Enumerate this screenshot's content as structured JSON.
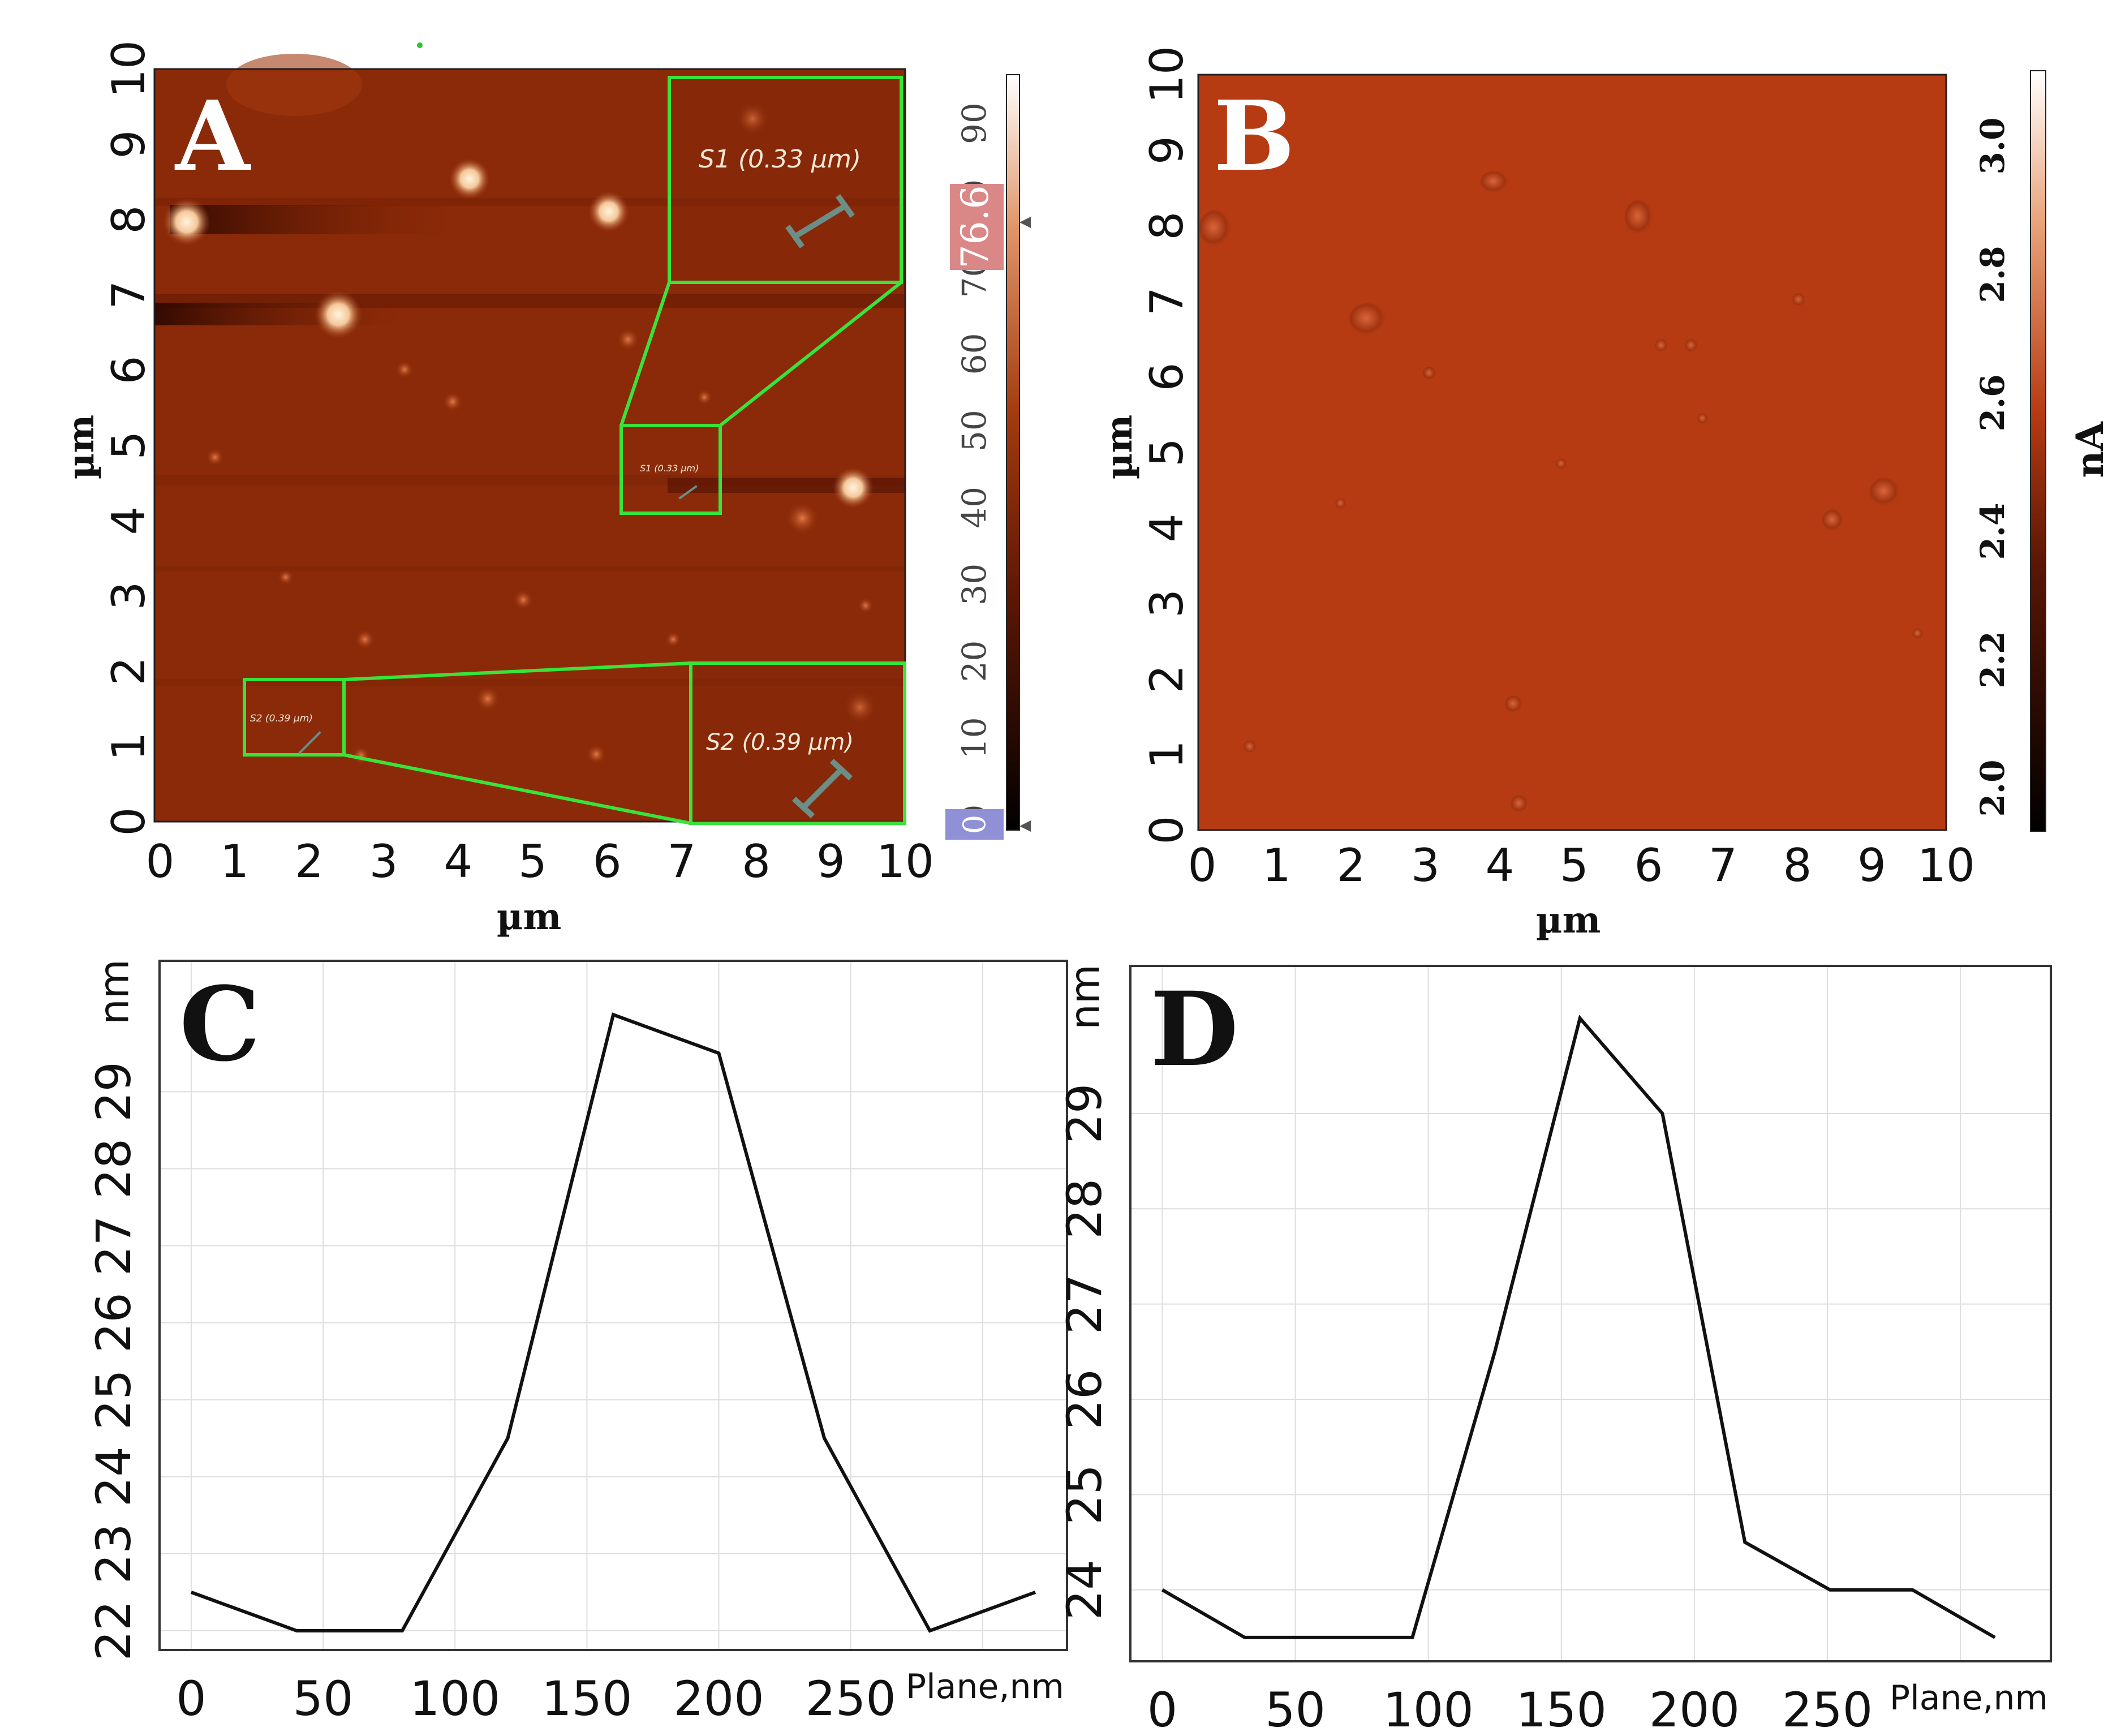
{
  "panels": {
    "A": {
      "letter": "A",
      "xlabel": "µm",
      "ylabel": "µm",
      "x_ticks": [
        "0",
        "1",
        "2",
        "3",
        "4",
        "5",
        "6",
        "7",
        "8",
        "9",
        "10"
      ],
      "y_ticks": [
        "0",
        "1",
        "2",
        "3",
        "4",
        "5",
        "6",
        "7",
        "8",
        "9",
        "10"
      ],
      "colorbar": {
        "ticks": [
          "0",
          "10",
          "20",
          "30",
          "40",
          "50",
          "60",
          "70",
          "80",
          "90"
        ],
        "marker_value": "76.6",
        "min_marker": "0"
      },
      "insets": {
        "s1_small": "S1 (0.33 µm)",
        "s1_large": "S1 (0.33 µm)",
        "s2_small": "S2 (0.39 µm)",
        "s2_large": "S2 (0.39 µm)"
      },
      "colors": {
        "map": "#8b2a08",
        "inset": "#39e339",
        "bright": "#fff1d6"
      }
    },
    "B": {
      "letter": "B",
      "xlabel": "µm",
      "ylabel": "µm",
      "x_ticks": [
        "0",
        "1",
        "2",
        "3",
        "4",
        "5",
        "6",
        "7",
        "8",
        "9",
        "10"
      ],
      "y_ticks": [
        "0",
        "1",
        "2",
        "3",
        "4",
        "5",
        "6",
        "7",
        "8",
        "9",
        "10"
      ],
      "colorbar": {
        "ticks": [
          "2.0",
          "2.2",
          "2.4",
          "2.6",
          "2.8",
          "3.0"
        ],
        "unit": "nA"
      },
      "colors": {
        "map": "#b63b13"
      }
    }
  },
  "chart_data": [
    {
      "panel": "C",
      "type": "line",
      "title": "",
      "letter": "C",
      "xlabel": "Plane,nm",
      "ylabel": "nm",
      "x_ticks": [
        0,
        50,
        100,
        150,
        200,
        250
      ],
      "y_ticks": [
        22,
        23,
        24,
        25,
        26,
        27,
        28,
        29
      ],
      "xlim": [
        -12,
        332
      ],
      "ylim": [
        21.75,
        30.7
      ],
      "x": [
        0,
        40,
        80,
        120,
        160,
        200,
        240,
        280,
        320
      ],
      "y": [
        22.5,
        22.0,
        22.0,
        24.5,
        30.0,
        29.5,
        24.5,
        22.0,
        22.5
      ]
    },
    {
      "panel": "D",
      "type": "line",
      "title": "",
      "letter": "D",
      "xlabel": "Plane,nm",
      "ylabel": "nm",
      "x_ticks": [
        0,
        50,
        100,
        150,
        200,
        250
      ],
      "y_ticks": [
        24,
        25,
        26,
        27,
        28,
        29
      ],
      "xlim": [
        -12,
        334
      ],
      "ylim": [
        23.25,
        30.55
      ],
      "x": [
        0,
        31,
        62,
        94,
        125,
        157,
        188,
        219,
        251,
        282,
        313
      ],
      "y": [
        24.0,
        23.5,
        23.5,
        23.5,
        26.5,
        30.0,
        29.0,
        24.5,
        24.0,
        24.0,
        23.5
      ]
    }
  ]
}
